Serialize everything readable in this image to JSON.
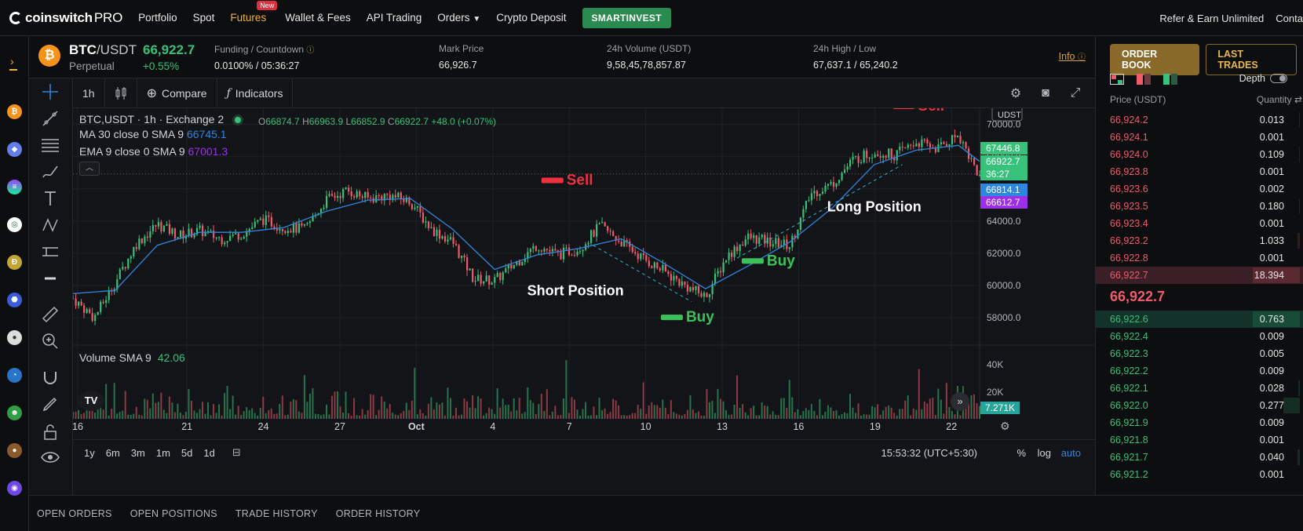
{
  "nav": {
    "logo_text": "coinswitch",
    "logo_pro": "PRO",
    "items": [
      "Portfolio",
      "Spot",
      "Futures",
      "Wallet & Fees",
      "API Trading",
      "Orders",
      "Crypto Deposit"
    ],
    "new_badge": "New",
    "smartinvest": "SMARTINVEST",
    "right": [
      "Refer & Earn Unlimited",
      "Conta"
    ]
  },
  "ticker": {
    "icon_letter": "₿",
    "base": "BTC",
    "quote": "/USDT",
    "type": "Perpetual",
    "last_price": "66,922.7",
    "change": "+0.55%",
    "stats": [
      {
        "label": "Funding / Countdown",
        "value": "0.0100% / 05:36:27"
      },
      {
        "label": "Mark Price",
        "value": "66,926.7"
      },
      {
        "label": "24h Volume (USDT)",
        "value": "9,58,45,78,857.87"
      },
      {
        "label": "24h High / Low",
        "value": "67,637.1 / 65,240.2"
      }
    ],
    "info": "Info"
  },
  "chart_toolbar": {
    "interval": "1h",
    "compare": "Compare",
    "indicators": "Indicators"
  },
  "legend": {
    "title": "BTC,USDT · 1h · Exchange 2",
    "o_label": "O",
    "o": "66874.7",
    "h_label": "H",
    "h": "66963.9",
    "l_label": "L",
    "l": "66852.9",
    "c_label": "C",
    "c": "66922.7",
    "change": "+48.0 (+0.07%)",
    "ma_label": "MA 30 close 0 SMA 9",
    "ma_value": "66745.1",
    "ema_label": "EMA 9 close 0 SMA 9",
    "ema_value": "67001.3",
    "volume_label": "Volume",
    "volume_sma": "SMA 9",
    "volume_value": "42.06"
  },
  "chart_data": {
    "type": "line",
    "xlabel": "",
    "ylabel": "",
    "x_ticks": [
      "16",
      "21",
      "24",
      "27",
      "Oct",
      "4",
      "7",
      "10",
      "13",
      "16",
      "19",
      "22"
    ],
    "y_ticks": [
      "58000.0",
      "60000.0",
      "62000.0",
      "64000.0",
      "66000.0",
      "68000.0",
      "70000.0"
    ],
    "ylim": [
      56400,
      71000
    ],
    "currency_tag": "UDST",
    "series": [
      {
        "name": "Price",
        "x": [
          0,
          6,
          12,
          18,
          24,
          30,
          36,
          42,
          48,
          54,
          60,
          66,
          72,
          78,
          84,
          90,
          96,
          102,
          108,
          114,
          120,
          126,
          132,
          138,
          144,
          150,
          156,
          162,
          168,
          174,
          180,
          186,
          192,
          198,
          204,
          210,
          216,
          222,
          228,
          234,
          240,
          246,
          252,
          258
        ],
        "values": [
          59200,
          58000,
          60200,
          62600,
          63800,
          63100,
          63400,
          62900,
          63200,
          64100,
          63600,
          63500,
          65300,
          65900,
          65400,
          65600,
          65200,
          63500,
          62700,
          60400,
          60300,
          61400,
          62500,
          61900,
          62300,
          63700,
          62700,
          61700,
          60900,
          60000,
          59300,
          61800,
          63000,
          62700,
          62500,
          65700,
          66300,
          67800,
          68300,
          68100,
          68900,
          68500,
          69400,
          66700
        ]
      },
      {
        "name": "MA 30 close 0 SMA 9",
        "x": [
          0,
          12,
          24,
          36,
          48,
          60,
          72,
          84,
          96,
          108,
          120,
          132,
          144,
          156,
          168,
          180,
          192,
          204,
          216,
          228,
          240,
          252,
          258
        ],
        "values": [
          59500,
          59700,
          62500,
          63300,
          63300,
          63600,
          64600,
          65300,
          65400,
          63500,
          61000,
          61900,
          62300,
          62900,
          61400,
          59800,
          61200,
          62700,
          64800,
          67500,
          68400,
          68700,
          67700
        ]
      }
    ],
    "volume": {
      "yticks": [
        "20K",
        "40K"
      ],
      "last": "7.271K"
    },
    "price_labels": [
      {
        "value": "67446.8",
        "color": "#37c17a"
      },
      {
        "value": "66922.7",
        "color": "#37c17a"
      },
      {
        "value": "36:27",
        "color": "#37c17a"
      },
      {
        "value": "66814.1",
        "color": "#2e86de"
      },
      {
        "value": "66612.7",
        "color": "#9b30e8"
      }
    ],
    "annotations": [
      {
        "text": "Sell",
        "type": "sell",
        "x": 140,
        "y": 66400
      },
      {
        "text": "Buy",
        "type": "buy",
        "x": 174,
        "y": 57900
      },
      {
        "text": "Short Position",
        "type": "label",
        "x": 143,
        "y": 59400
      },
      {
        "text": "Buy",
        "type": "buy",
        "x": 197,
        "y": 61400
      },
      {
        "text": "Long Position",
        "type": "label",
        "x": 228,
        "y": 64600
      },
      {
        "text": "Sell",
        "type": "sell",
        "x": 240,
        "y": 71000
      }
    ]
  },
  "chart_bottom": {
    "ranges": [
      "1y",
      "6m",
      "3m",
      "1m",
      "5d",
      "1d"
    ],
    "time": "15:53:32 (UTC+5:30)",
    "percent": "%",
    "log": "log",
    "auto": "auto"
  },
  "orderbook": {
    "tabs": [
      "ORDER BOOK",
      "LAST TRADES"
    ],
    "depth": "Depth",
    "price_header": "Price (USDT)",
    "qty_header": "Quantity",
    "asks": [
      {
        "price": "66,924.2",
        "qty": "0.013",
        "fill": 0.02
      },
      {
        "price": "66,924.1",
        "qty": "0.001",
        "fill": 0.0
      },
      {
        "price": "66,924.0",
        "qty": "0.109",
        "fill": 0.02
      },
      {
        "price": "66,923.8",
        "qty": "0.001",
        "fill": 0.0
      },
      {
        "price": "66,923.6",
        "qty": "0.002",
        "fill": 0.0
      },
      {
        "price": "66,923.5",
        "qty": "0.180",
        "fill": 0.02
      },
      {
        "price": "66,923.4",
        "qty": "0.001",
        "fill": 0.0
      },
      {
        "price": "66,923.2",
        "qty": "1.033",
        "fill": 0.05
      },
      {
        "price": "66,922.8",
        "qty": "0.001",
        "fill": 0.0
      },
      {
        "price": "66,922.7",
        "qty": "18.394",
        "fill": 1.0
      }
    ],
    "mid_price": "66,922.7",
    "bids": [
      {
        "price": "66,922.6",
        "qty": "0.763",
        "fill": 1.0
      },
      {
        "price": "66,922.4",
        "qty": "0.009",
        "fill": 0.0
      },
      {
        "price": "66,922.3",
        "qty": "0.005",
        "fill": 0.0
      },
      {
        "price": "66,922.2",
        "qty": "0.009",
        "fill": 0.0
      },
      {
        "price": "66,922.1",
        "qty": "0.028",
        "fill": 0.04
      },
      {
        "price": "66,922.0",
        "qty": "0.277",
        "fill": 0.35
      },
      {
        "price": "66,921.9",
        "qty": "0.009",
        "fill": 0.0
      },
      {
        "price": "66,921.8",
        "qty": "0.001",
        "fill": 0.0
      },
      {
        "price": "66,921.7",
        "qty": "0.040",
        "fill": 0.05
      },
      {
        "price": "66,921.2",
        "qty": "0.001",
        "fill": 0.0
      }
    ]
  },
  "footer": {
    "tabs": [
      "OPEN ORDERS",
      "OPEN POSITIONS",
      "TRADE HISTORY",
      "ORDER HISTORY"
    ]
  },
  "colors": {
    "up": "#37c17a",
    "down": "#f05a6b",
    "accent": "#f0b23a",
    "ma": "#2e86de",
    "ema": "#9b30e8",
    "smart": "#2a8a4f"
  }
}
